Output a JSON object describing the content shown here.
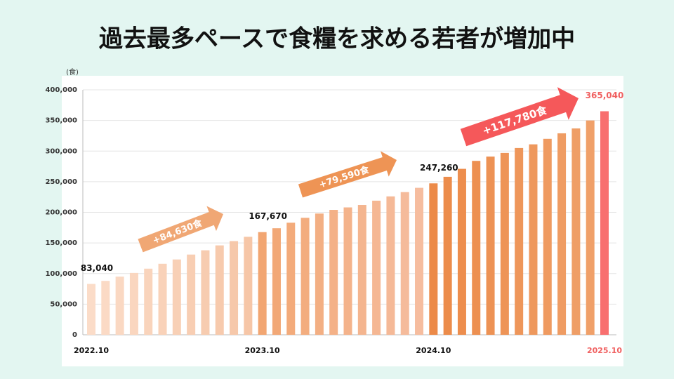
{
  "chart_data": {
    "type": "bar",
    "title": "過去最多ペースで食糧を求める若者が増加中",
    "unit_label": "(食)",
    "categories": [
      "2022.10",
      null,
      null,
      null,
      null,
      null,
      null,
      null,
      null,
      null,
      null,
      null,
      "2023.10",
      null,
      null,
      null,
      null,
      null,
      null,
      null,
      null,
      null,
      null,
      null,
      "2024.10",
      null,
      null,
      null,
      null,
      null,
      null,
      null,
      null,
      null,
      null,
      null,
      "2025.10"
    ],
    "values": [
      83040,
      88000,
      95000,
      101000,
      108000,
      116000,
      123000,
      131000,
      138000,
      146000,
      153000,
      160000,
      167670,
      174000,
      183000,
      191000,
      198000,
      204000,
      208000,
      212000,
      219000,
      226000,
      233000,
      240000,
      247260,
      258000,
      271000,
      284000,
      291000,
      297000,
      305000,
      311000,
      320000,
      329000,
      337000,
      350000,
      365040
    ],
    "value_labels": [
      "83,040",
      null,
      null,
      null,
      null,
      null,
      null,
      null,
      null,
      null,
      null,
      null,
      "167,670",
      null,
      null,
      null,
      null,
      null,
      null,
      null,
      null,
      null,
      null,
      null,
      "247,260",
      null,
      null,
      null,
      null,
      null,
      null,
      null,
      null,
      null,
      null,
      null,
      "365,040"
    ],
    "colors": [
      "#fbdcc8",
      "#fbdac5",
      "#fad8c2",
      "#fad6bf",
      "#f9d4bc",
      "#f9d2b9",
      "#f8d0b6",
      "#f8ceb3",
      "#f7ccb0",
      "#f7caad",
      "#f6c8aa",
      "#f6c6a7",
      "#f2a672",
      "#f2a877",
      "#f3ab7b",
      "#f3ad7f",
      "#f3af83",
      "#f4b187",
      "#f4b38b",
      "#f4b58f",
      "#f5b793",
      "#f5b997",
      "#f5bb9b",
      "#f6bd9f",
      "#ec8a48",
      "#ec8c4b",
      "#ed8e4e",
      "#ed9051",
      "#ed9254",
      "#ee9457",
      "#ee965a",
      "#ee985d",
      "#ef9a60",
      "#ef9c63",
      "#ef9e66",
      "#f0a069",
      "#f86f6f"
    ],
    "label_colors": [
      "#111111",
      null,
      null,
      null,
      null,
      null,
      null,
      null,
      null,
      null,
      null,
      null,
      "#111111",
      null,
      null,
      null,
      null,
      null,
      null,
      null,
      null,
      null,
      null,
      null,
      "#111111",
      null,
      null,
      null,
      null,
      null,
      null,
      null,
      null,
      null,
      null,
      null,
      "#f06060"
    ],
    "ylim": [
      0,
      400000
    ],
    "yticks": [
      0,
      {
        "value": 50000,
        "label": "50,000"
      },
      {
        "value": 100000,
        "label": "100,000"
      },
      {
        "value": 150000,
        "label": "150,000"
      },
      {
        "value": 200000,
        "label": "200,000"
      },
      {
        "value": 250000,
        "label": "250,000"
      },
      {
        "value": 300000,
        "label": "300,000"
      },
      {
        "value": 350000,
        "label": "350,000"
      },
      {
        "value": 400000,
        "label": "400,000"
      }
    ],
    "grid": true,
    "annotations": [
      {
        "text": "+84,630食",
        "color": "#f0a774"
      },
      {
        "text": "+79,590食",
        "color": "#ee9455"
      },
      {
        "text": "+117,780食",
        "color": "#f5585a"
      }
    ]
  }
}
